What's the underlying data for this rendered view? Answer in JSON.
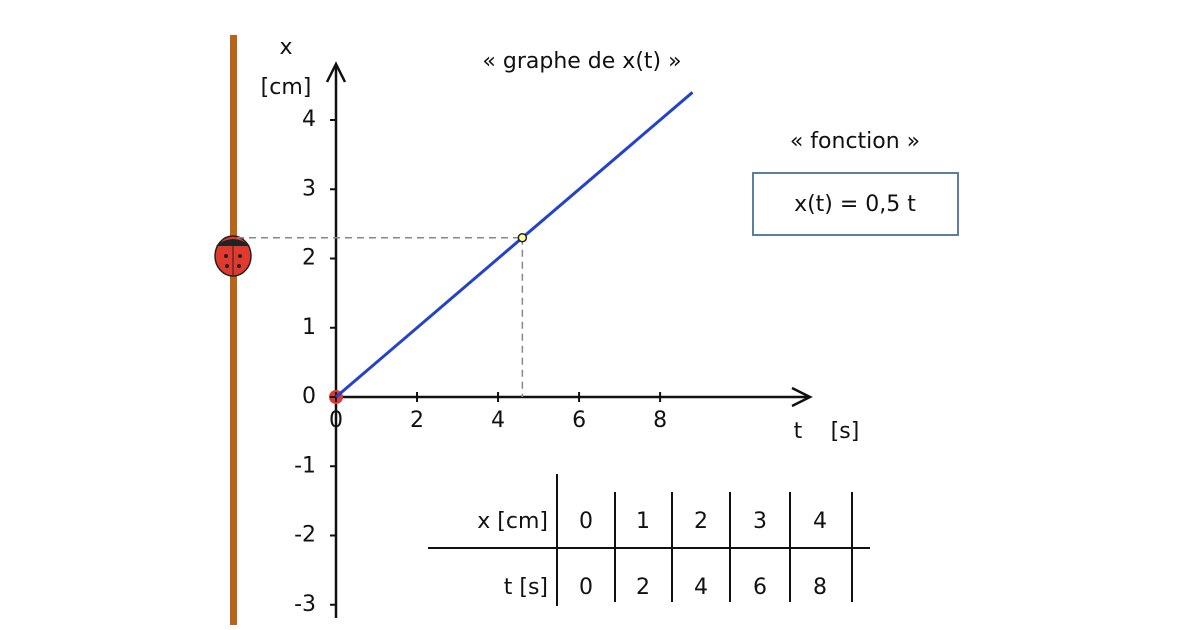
{
  "chart_data": {
    "type": "line",
    "title": "« graphe de x(t) »",
    "y_label": "x",
    "y_unit": "[cm]",
    "x_label": "t",
    "x_unit": "[s]",
    "x": [
      0,
      8.8
    ],
    "series": [
      {
        "color": "#2343c8",
        "values": [
          0,
          4.4
        ]
      }
    ],
    "highlight": {
      "x": 4.6,
      "y": 2.3
    },
    "xlim": [
      0,
      11.7
    ],
    "ylim": [
      -3.2,
      4.8
    ],
    "xticks": [
      0,
      2,
      4,
      6,
      8
    ],
    "yticks": [
      -3,
      -2,
      -1,
      0,
      1,
      2,
      3,
      4
    ]
  },
  "annotation": {
    "label": "« fonction »",
    "formula": "x(t) = 0,5 t"
  },
  "table": {
    "rows": [
      {
        "header": "x [cm]",
        "color": "#e0392d",
        "cells": [
          0,
          1,
          2,
          3,
          4
        ]
      },
      {
        "header": "t [s]",
        "color": "#2d3fc4",
        "cells": [
          0,
          2,
          4,
          6,
          8
        ]
      }
    ]
  }
}
